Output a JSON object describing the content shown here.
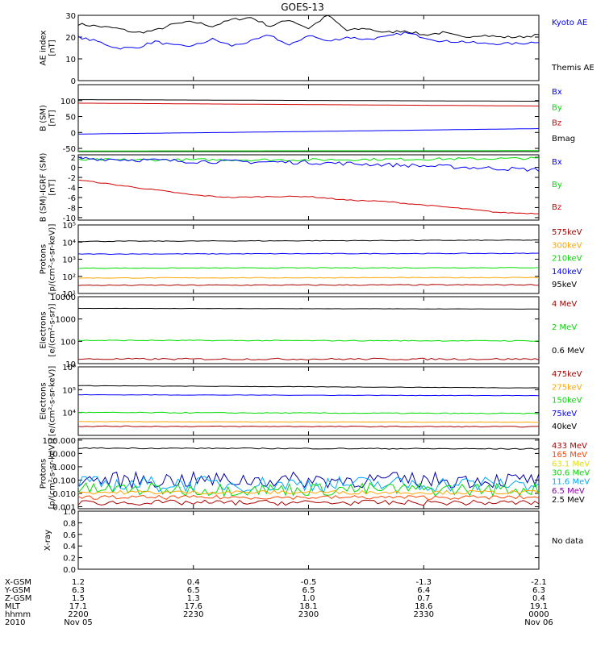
{
  "title": "GOES-13",
  "colors": {
    "black": "#000000",
    "blue": "#0000ff",
    "green": "#00dd00",
    "red": "#d00000",
    "darkred": "#aa0000",
    "orange": "#ffa500",
    "cyan": "#00aaff",
    "yellow": "#e0e000",
    "purple": "#8800aa"
  },
  "chart_data": [
    {
      "id": "ae",
      "type": "line",
      "ylabel_lines": [
        "AE index",
        "[nT]"
      ],
      "ylim": [
        0,
        30
      ],
      "scale": "linear",
      "ticks": [
        0,
        10,
        20,
        30
      ],
      "tick_labels": [
        "0",
        "10",
        "20",
        "30"
      ],
      "legend": [
        {
          "label": "Kyoto AE",
          "color": "#0000ff"
        },
        {
          "label": "Themis AE",
          "color": "#000000"
        }
      ],
      "series": [
        {
          "color": "#000000",
          "noise": 0.6,
          "points": [
            [
              0,
              26
            ],
            [
              5,
              25
            ],
            [
              10,
              24
            ],
            [
              15,
              22
            ],
            [
              20,
              23
            ],
            [
              25,
              26
            ],
            [
              30,
              27
            ],
            [
              35,
              25
            ],
            [
              40,
              28
            ],
            [
              45,
              29
            ],
            [
              50,
              25
            ],
            [
              55,
              28
            ],
            [
              60,
              24
            ],
            [
              65,
              30
            ],
            [
              70,
              23
            ],
            [
              75,
              24
            ],
            [
              80,
              22
            ],
            [
              85,
              23
            ],
            [
              90,
              21
            ],
            [
              95,
              22
            ],
            [
              100,
              20
            ],
            [
              105,
              21
            ],
            [
              110,
              20
            ],
            [
              115,
              20
            ],
            [
              120,
              21
            ]
          ]
        },
        {
          "color": "#0000ff",
          "noise": 0.6,
          "points": [
            [
              0,
              20
            ],
            [
              5,
              18
            ],
            [
              10,
              15
            ],
            [
              15,
              15
            ],
            [
              20,
              18
            ],
            [
              25,
              16
            ],
            [
              30,
              16
            ],
            [
              35,
              19
            ],
            [
              40,
              16
            ],
            [
              45,
              18
            ],
            [
              50,
              21
            ],
            [
              55,
              16
            ],
            [
              60,
              21
            ],
            [
              65,
              18
            ],
            [
              70,
              20
            ],
            [
              75,
              19
            ],
            [
              80,
              20
            ],
            [
              85,
              22
            ],
            [
              90,
              20
            ],
            [
              95,
              18
            ],
            [
              100,
              18
            ],
            [
              105,
              17
            ],
            [
              110,
              17
            ],
            [
              115,
              17
            ],
            [
              120,
              18
            ]
          ]
        }
      ]
    },
    {
      "id": "bsm",
      "type": "line",
      "ylabel_lines": [
        "B (SM)",
        "[nT]"
      ],
      "ylim": [
        -60,
        150
      ],
      "scale": "linear",
      "ticks": [
        -50,
        0,
        50,
        100
      ],
      "tick_labels": [
        "-50",
        "0",
        "50",
        "100"
      ],
      "legend": [
        {
          "label": "Bx",
          "color": "#0000ff"
        },
        {
          "label": "By",
          "color": "#00dd00"
        },
        {
          "label": "Bz",
          "color": "#d00000"
        },
        {
          "label": "Bmag",
          "color": "#000000"
        }
      ],
      "series": [
        {
          "color": "#000000",
          "noise": 0,
          "points": [
            [
              0,
              103
            ],
            [
              120,
              98
            ]
          ]
        },
        {
          "color": "#d00000",
          "noise": 0,
          "points": [
            [
              0,
              92
            ],
            [
              120,
              83
            ]
          ]
        },
        {
          "color": "#0000ff",
          "noise": 0,
          "points": [
            [
              0,
              -5
            ],
            [
              60,
              3
            ],
            [
              120,
              12
            ]
          ]
        },
        {
          "color": "#00dd00",
          "noise": 0,
          "points": [
            [
              0,
              -58
            ],
            [
              120,
              -57
            ]
          ]
        }
      ]
    },
    {
      "id": "bigrf",
      "type": "line",
      "ylabel_lines": [
        "B (SM)-IGRF (SM)",
        "[nT]"
      ],
      "ylim": [
        -10.5,
        2.5
      ],
      "scale": "linear",
      "ticks": [
        -10,
        -8,
        -6,
        -4,
        -2,
        0,
        2
      ],
      "tick_labels": [
        "-10",
        "-8",
        "-6",
        "-4",
        "-2",
        "0",
        "2"
      ],
      "legend": [
        {
          "label": "Bx",
          "color": "#0000ff"
        },
        {
          "label": "By",
          "color": "#00dd00"
        },
        {
          "label": "Bz",
          "color": "#d00000"
        }
      ],
      "series": [
        {
          "color": "#00dd00",
          "noise": 0.25,
          "points": [
            [
              0,
              1.5
            ],
            [
              60,
              1.5
            ],
            [
              120,
              1.8
            ]
          ]
        },
        {
          "color": "#0000ff",
          "noise": 0.4,
          "points": [
            [
              0,
              1.8
            ],
            [
              30,
              1.2
            ],
            [
              60,
              1.0
            ],
            [
              90,
              0.3
            ],
            [
              120,
              -0.5
            ]
          ]
        },
        {
          "color": "#d00000",
          "noise": 0.1,
          "points": [
            [
              0,
              -2.5
            ],
            [
              10,
              -3.5
            ],
            [
              20,
              -4.5
            ],
            [
              30,
              -5.5
            ],
            [
              40,
              -6.0
            ],
            [
              50,
              -5.8
            ],
            [
              60,
              -5.8
            ],
            [
              70,
              -6.5
            ],
            [
              80,
              -6.8
            ],
            [
              90,
              -7.5
            ],
            [
              100,
              -8.2
            ],
            [
              110,
              -9.0
            ],
            [
              120,
              -9.2
            ]
          ]
        }
      ]
    },
    {
      "id": "protons_kev",
      "type": "line",
      "ylabel_lines": [
        "Protons",
        "[p/(cm²-s-sr-keV)]"
      ],
      "ylim": [
        10,
        100000
      ],
      "scale": "log",
      "ticks": [
        10,
        100,
        1000,
        10000,
        100000
      ],
      "tick_labels": [
        "10¹",
        "10²",
        "10³",
        "10⁴",
        "10⁵"
      ],
      "legend": [
        {
          "label": "575keV",
          "color": "#aa0000"
        },
        {
          "label": "300keV",
          "color": "#ffa500"
        },
        {
          "label": "210keV",
          "color": "#00dd00"
        },
        {
          "label": "140keV",
          "color": "#0000ff"
        },
        {
          "label": "95keV",
          "color": "#000000"
        }
      ],
      "series": [
        {
          "color": "#000000",
          "noise": 0.02,
          "points": [
            [
              0,
              11000
            ],
            [
              120,
              13000
            ]
          ]
        },
        {
          "color": "#0000ff",
          "noise": 0.02,
          "points": [
            [
              0,
              2000
            ],
            [
              120,
              2200
            ]
          ]
        },
        {
          "color": "#00dd00",
          "noise": 0.02,
          "points": [
            [
              0,
              300
            ],
            [
              120,
              320
            ]
          ]
        },
        {
          "color": "#ffa500",
          "noise": 0.02,
          "points": [
            [
              0,
              80
            ],
            [
              120,
              85
            ]
          ]
        },
        {
          "color": "#aa0000",
          "noise": 0.03,
          "points": [
            [
              0,
              30
            ],
            [
              120,
              32
            ]
          ]
        }
      ]
    },
    {
      "id": "electrons_mev",
      "type": "line",
      "ylabel_lines": [
        "Electrons",
        "[e/(cm²-s-sr)]"
      ],
      "ylim": [
        10,
        10000
      ],
      "scale": "log",
      "ticks": [
        10,
        100,
        1000,
        10000
      ],
      "tick_labels": [
        "10",
        "100",
        "1000",
        "10000"
      ],
      "legend": [
        {
          "label": "4 MeV",
          "color": "#aa0000"
        },
        {
          "label": "2 MeV",
          "color": "#00dd00"
        },
        {
          "label": "0.6 MeV",
          "color": "#000000"
        }
      ],
      "series": [
        {
          "color": "#000000",
          "noise": 0.005,
          "points": [
            [
              0,
              3000
            ],
            [
              120,
              2800
            ]
          ]
        },
        {
          "color": "#00dd00",
          "noise": 0.02,
          "points": [
            [
              0,
              110
            ],
            [
              120,
              105
            ]
          ]
        },
        {
          "color": "#aa0000",
          "noise": 0.04,
          "points": [
            [
              0,
              16
            ],
            [
              120,
              16
            ]
          ]
        }
      ]
    },
    {
      "id": "electrons_kev",
      "type": "line",
      "ylabel_lines": [
        "Electrons",
        "[e/(cm²-s-sr-keV)]"
      ],
      "ylim": [
        1000,
        1000000
      ],
      "scale": "log",
      "ticks": [
        10000,
        100000,
        1000000
      ],
      "tick_labels": [
        "10⁴",
        "10⁵",
        "10⁶"
      ],
      "legend": [
        {
          "label": "475keV",
          "color": "#aa0000"
        },
        {
          "label": "275keV",
          "color": "#ffa500"
        },
        {
          "label": "150keV",
          "color": "#00dd00"
        },
        {
          "label": "75keV",
          "color": "#0000ff"
        },
        {
          "label": "40keV",
          "color": "#000000"
        }
      ],
      "series": [
        {
          "color": "#000000",
          "noise": 0.01,
          "points": [
            [
              0,
              150000
            ],
            [
              120,
              120000
            ]
          ]
        },
        {
          "color": "#0000ff",
          "noise": 0.01,
          "points": [
            [
              0,
              60000
            ],
            [
              120,
              55000
            ]
          ]
        },
        {
          "color": "#00dd00",
          "noise": 0.02,
          "points": [
            [
              0,
              10000
            ],
            [
              120,
              9000
            ]
          ]
        },
        {
          "color": "#ffa500",
          "noise": 0.01,
          "points": [
            [
              0,
              4000
            ],
            [
              120,
              3800
            ]
          ]
        },
        {
          "color": "#aa0000",
          "noise": 0.02,
          "points": [
            [
              0,
              2500
            ],
            [
              120,
              2400
            ]
          ]
        }
      ]
    },
    {
      "id": "protons_mev",
      "type": "line",
      "ylabel_lines": [
        "Protons",
        "[p/(cm²-s-sr-keV)]"
      ],
      "ylim": [
        0.0007,
        130
      ],
      "scale": "log",
      "ticks": [
        0.001,
        0.01,
        0.1,
        1,
        10,
        100
      ],
      "tick_labels": [
        "0.001",
        "0.010",
        "0.100",
        "1.000",
        "10.000",
        "100.000"
      ],
      "legend": [
        {
          "label": "433 MeV",
          "color": "#aa0000"
        },
        {
          "label": "165 MeV",
          "color": "#ff4400"
        },
        {
          "label": "63.1 MeV",
          "color": "#e0e000"
        },
        {
          "label": "30.6 MeV",
          "color": "#00dd00"
        },
        {
          "label": "11.6 MeV",
          "color": "#00aaff"
        },
        {
          "label": "6.5 MeV",
          "color": "#8800aa"
        },
        {
          "label": "2.5 MeV",
          "color": "#000000"
        }
      ],
      "series": [
        {
          "color": "#000000",
          "noise": 0.04,
          "points": [
            [
              0,
              25
            ],
            [
              120,
              22
            ]
          ]
        },
        {
          "color": "#0000aa",
          "noise": 0.6,
          "points": [
            [
              0,
              0.1
            ],
            [
              120,
              0.1
            ]
          ]
        },
        {
          "color": "#00aaff",
          "noise": 0.6,
          "points": [
            [
              0,
              0.05
            ],
            [
              120,
              0.05
            ]
          ]
        },
        {
          "color": "#00dd00",
          "noise": 0.5,
          "points": [
            [
              0,
              0.02
            ],
            [
              120,
              0.02
            ]
          ]
        },
        {
          "color": "#ffa500",
          "noise": 0.15,
          "points": [
            [
              0,
              0.012
            ],
            [
              120,
              0.012
            ]
          ]
        },
        {
          "color": "#ff4400",
          "noise": 0.15,
          "points": [
            [
              0,
              0.005
            ],
            [
              120,
              0.005
            ]
          ]
        },
        {
          "color": "#aa0000",
          "noise": 0.2,
          "points": [
            [
              0,
              0.002
            ],
            [
              120,
              0.002
            ]
          ]
        }
      ]
    },
    {
      "id": "xray",
      "type": "line",
      "ylabel_lines": [
        "X-ray"
      ],
      "ylim": [
        0,
        1.0
      ],
      "scale": "linear",
      "ticks": [
        0,
        0.2,
        0.4,
        0.6,
        0.8,
        1.0
      ],
      "tick_labels": [
        "0.0",
        "0.2",
        "0.4",
        "0.6",
        "0.8",
        "1.0"
      ],
      "legend": [
        {
          "label": "No data",
          "color": "#000000"
        }
      ],
      "series": []
    }
  ],
  "x_axis": {
    "xlim": [
      0,
      120
    ],
    "tick_positions": [
      0,
      30,
      60,
      90,
      120
    ],
    "rows": [
      {
        "label": "X-GSM",
        "values": [
          "1.2",
          "0.4",
          "-0.5",
          "-1.3",
          "-2.1"
        ]
      },
      {
        "label": "Y-GSM",
        "values": [
          "6.3",
          "6.5",
          "6.5",
          "6.4",
          "6.3"
        ]
      },
      {
        "label": "Z-GSM",
        "values": [
          "1.5",
          "1.3",
          "1.0",
          "0.7",
          "0.4"
        ]
      },
      {
        "label": "MLT",
        "values": [
          "17.1",
          "17.6",
          "18.1",
          "18.6",
          "19.1"
        ]
      },
      {
        "label": "hhmm",
        "values": [
          "2200",
          "2230",
          "2300",
          "2330",
          "0000"
        ]
      },
      {
        "label": "2010",
        "values": [
          "Nov 05",
          "",
          "",
          "",
          "Nov 06"
        ]
      }
    ]
  }
}
